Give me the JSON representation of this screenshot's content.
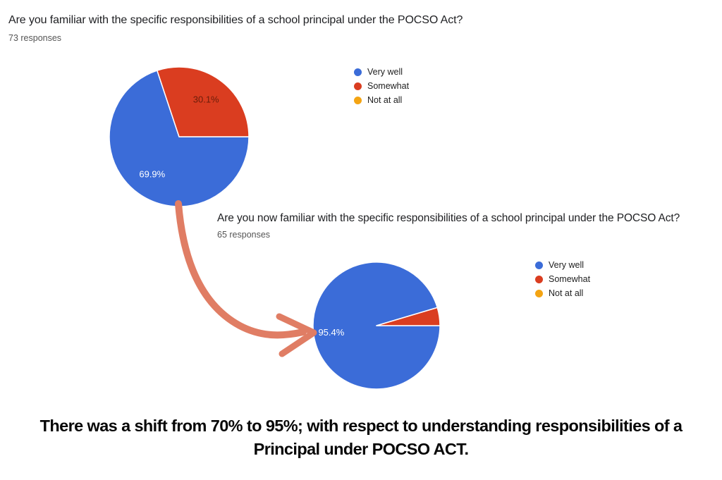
{
  "page": {
    "background": "#ffffff"
  },
  "chart_data": [
    {
      "type": "pie",
      "title": "Are you familiar with the specific responsibilities of a school principal under the POCSO Act?",
      "subtitle": "73 responses",
      "categories": [
        "Very well",
        "Somewhat",
        "Not at all"
      ],
      "values": [
        69.9,
        30.1,
        0
      ],
      "value_unit": "percent",
      "slice_labels": [
        "69.9%",
        "30.1%",
        ""
      ],
      "slice_colors": [
        "#3b6cd8",
        "#da3d20",
        "#f4a413"
      ],
      "slice_label_colors": [
        "#ffffff",
        "#6b1d0a",
        ""
      ],
      "legend_position": "right",
      "start_angle_deg": 90,
      "label_radius_frac": 0.66
    },
    {
      "type": "pie",
      "title": "Are you now familiar with the specific responsibilities of a school principal under the POCSO Act?",
      "subtitle": "65 responses",
      "categories": [
        "Very well",
        "Somewhat",
        "Not at all"
      ],
      "values": [
        95.4,
        4.6,
        0
      ],
      "value_unit": "percent",
      "slice_labels": [
        "95.4%",
        "",
        ""
      ],
      "slice_colors": [
        "#3b6cd8",
        "#da3d20",
        "#f4a413"
      ],
      "slice_label_colors": [
        "#ffffff",
        "",
        ""
      ],
      "legend_position": "right",
      "start_angle_deg": 90,
      "label_radius_frac": 0.72
    }
  ],
  "annotation_arrow": {
    "color": "#e07d64",
    "description": "curved arrow from first pie chart to second pie chart"
  },
  "caption": {
    "lines": [
      "There was a shift from 70% to 95%; with respect to understanding responsibilities of a",
      "Principal under POCSO ACT."
    ],
    "full_text": "There was a shift from 70% to 95%; with respect to understanding responsibilities of a Principal under POCSO ACT."
  }
}
